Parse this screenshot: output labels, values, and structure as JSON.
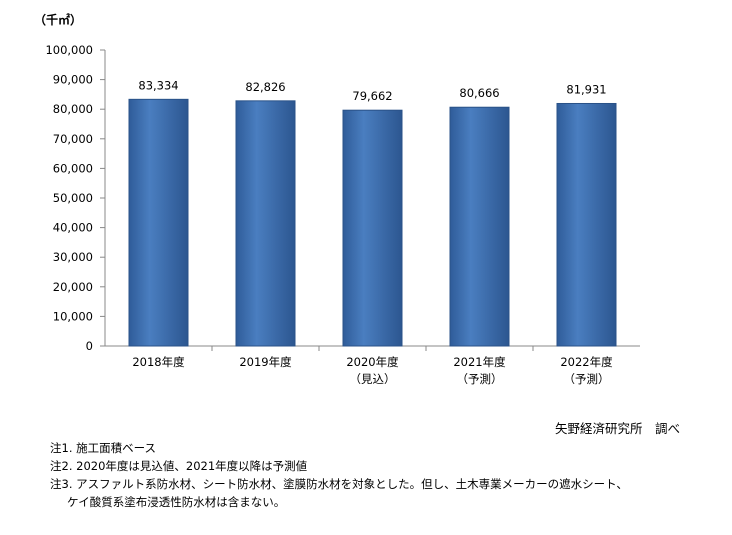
{
  "chart_data": {
    "type": "bar",
    "unit_label": "（千㎡）",
    "categories": [
      [
        "2018年度"
      ],
      [
        "2019年度"
      ],
      [
        "2020年度",
        "（見込）"
      ],
      [
        "2021年度",
        "（予測）"
      ],
      [
        "2022年度",
        "（予測）"
      ]
    ],
    "values": [
      83334,
      82826,
      79662,
      80666,
      81931
    ],
    "data_labels": [
      "83,334",
      "82,826",
      "79,662",
      "80,666",
      "81,931"
    ],
    "ylim": [
      0,
      100000
    ],
    "yticks": [
      0,
      10000,
      20000,
      30000,
      40000,
      50000,
      60000,
      70000,
      80000,
      90000,
      100000
    ],
    "ytick_labels": [
      "0",
      "10,000",
      "20,000",
      "30,000",
      "40,000",
      "50,000",
      "60,000",
      "70,000",
      "80,000",
      "90,000",
      "100,000"
    ],
    "grid": false,
    "bar_color": "#3d6fb0"
  },
  "source": "矢野経済研究所　調べ",
  "notes": [
    "注1. 施工面積ベース",
    "注2. 2020年度は見込値、2021年度以降は予測値",
    "注3. アスファルト系防水材、シート防水材、塗膜防水材を対象とした。但し、土木専業メーカーの遮水シート、",
    "ケイ酸質系塗布浸透性防水材は含まない。"
  ]
}
